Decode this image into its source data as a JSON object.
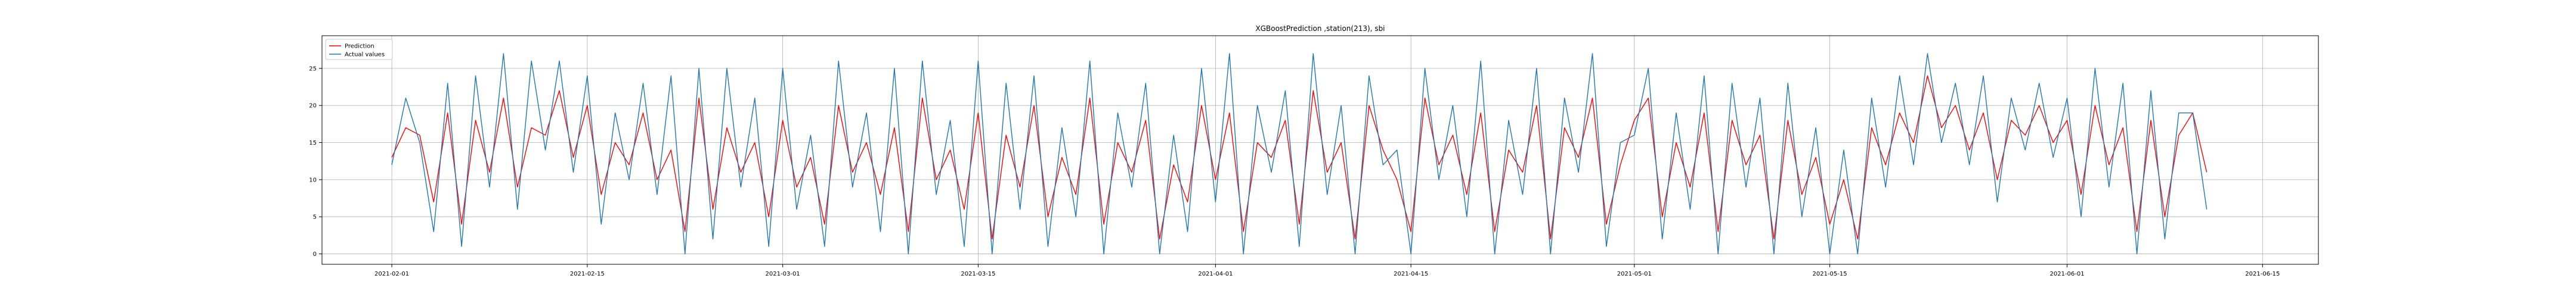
{
  "chart_data": {
    "type": "line",
    "title": "XGBoostPrediction ,station(213), sbi",
    "xlabel": "",
    "ylabel": "",
    "x_range": [
      "2021-01-27",
      "2021-06-19"
    ],
    "ylim": [
      -1.4,
      29.4
    ],
    "grid": true,
    "legend_position": "top-left",
    "x_ticks": [
      "2021-02-01",
      "2021-02-15",
      "2021-03-01",
      "2021-03-15",
      "2021-04-01",
      "2021-04-15",
      "2021-05-01",
      "2021-05-15",
      "2021-06-01",
      "2021-06-15"
    ],
    "y_ticks": [
      0,
      5,
      10,
      15,
      20,
      25
    ],
    "series": [
      {
        "name": "Prediction",
        "color": "#ff0000",
        "x": [
          "2021-02-01",
          "2021-02-02",
          "2021-02-03",
          "2021-02-04",
          "2021-02-05",
          "2021-02-06",
          "2021-02-07",
          "2021-02-08",
          "2021-02-09",
          "2021-02-10",
          "2021-02-11",
          "2021-02-12",
          "2021-02-13",
          "2021-02-14",
          "2021-02-15",
          "2021-02-16",
          "2021-02-17",
          "2021-02-18",
          "2021-02-19",
          "2021-02-20",
          "2021-02-21",
          "2021-02-22",
          "2021-02-23",
          "2021-02-24",
          "2021-02-25",
          "2021-02-26",
          "2021-02-27",
          "2021-02-28",
          "2021-03-01",
          "2021-03-02",
          "2021-03-03",
          "2021-03-04",
          "2021-03-05",
          "2021-03-06",
          "2021-03-07",
          "2021-03-08",
          "2021-03-09",
          "2021-03-10",
          "2021-03-11",
          "2021-03-12",
          "2021-03-13",
          "2021-03-14",
          "2021-03-15",
          "2021-03-16",
          "2021-03-17",
          "2021-03-18",
          "2021-03-19",
          "2021-03-20",
          "2021-03-21",
          "2021-03-22",
          "2021-03-23",
          "2021-03-24",
          "2021-03-25",
          "2021-03-26",
          "2021-03-27",
          "2021-03-28",
          "2021-03-29",
          "2021-03-30",
          "2021-03-31",
          "2021-04-01",
          "2021-04-02",
          "2021-04-03",
          "2021-04-04",
          "2021-04-05",
          "2021-04-06",
          "2021-04-07",
          "2021-04-08",
          "2021-04-09",
          "2021-04-10",
          "2021-04-11",
          "2021-04-12",
          "2021-04-13",
          "2021-04-14",
          "2021-04-15",
          "2021-04-16",
          "2021-04-17",
          "2021-04-18",
          "2021-04-19",
          "2021-04-20",
          "2021-04-21",
          "2021-04-22",
          "2021-04-23",
          "2021-04-24",
          "2021-04-25",
          "2021-04-26",
          "2021-04-27",
          "2021-04-28",
          "2021-04-29",
          "2021-04-30",
          "2021-05-01",
          "2021-05-02",
          "2021-05-03",
          "2021-05-04",
          "2021-05-05",
          "2021-05-06",
          "2021-05-07",
          "2021-05-08",
          "2021-05-09",
          "2021-05-10",
          "2021-05-11",
          "2021-05-12",
          "2021-05-13",
          "2021-05-14",
          "2021-05-15",
          "2021-05-16",
          "2021-05-17",
          "2021-05-18",
          "2021-05-19",
          "2021-05-20",
          "2021-05-21",
          "2021-05-22",
          "2021-05-23",
          "2021-05-24",
          "2021-05-25",
          "2021-05-26",
          "2021-05-27",
          "2021-05-28",
          "2021-05-29",
          "2021-05-30",
          "2021-05-31",
          "2021-06-01",
          "2021-06-02",
          "2021-06-03",
          "2021-06-04",
          "2021-06-05",
          "2021-06-06",
          "2021-06-07",
          "2021-06-08",
          "2021-06-09",
          "2021-06-10",
          "2021-06-11"
        ],
        "y": [
          13,
          17,
          16,
          7,
          19,
          4,
          18,
          11,
          21,
          9,
          17,
          16,
          22,
          13,
          20,
          8,
          15,
          12,
          19,
          10,
          14,
          3,
          21,
          6,
          17,
          11,
          15,
          5,
          18,
          9,
          13,
          4,
          20,
          11,
          15,
          8,
          17,
          3,
          21,
          10,
          14,
          6,
          19,
          2,
          16,
          9,
          20,
          5,
          13,
          8,
          21,
          4,
          15,
          11,
          18,
          2,
          12,
          7,
          20,
          10,
          19,
          3,
          15,
          13,
          18,
          4,
          22,
          11,
          15,
          2,
          20,
          14,
          10,
          3,
          21,
          12,
          16,
          8,
          19,
          3,
          14,
          11,
          20,
          2,
          17,
          13,
          21,
          4,
          12,
          18,
          21,
          5,
          15,
          9,
          19,
          3,
          18,
          12,
          16,
          2,
          18,
          8,
          13,
          4,
          10,
          2,
          17,
          12,
          19,
          15,
          24,
          17,
          20,
          14,
          19,
          10,
          18,
          16,
          20,
          15,
          18,
          8,
          20,
          12,
          17,
          3,
          18,
          5,
          16,
          19,
          11
        ],
        "note": ""
      },
      {
        "name": "Actual values",
        "color": "#1f77b4",
        "x": [
          "2021-02-01",
          "2021-02-02",
          "2021-02-03",
          "2021-02-04",
          "2021-02-05",
          "2021-02-06",
          "2021-02-07",
          "2021-02-08",
          "2021-02-09",
          "2021-02-10",
          "2021-02-11",
          "2021-02-12",
          "2021-02-13",
          "2021-02-14",
          "2021-02-15",
          "2021-02-16",
          "2021-02-17",
          "2021-02-18",
          "2021-02-19",
          "2021-02-20",
          "2021-02-21",
          "2021-02-22",
          "2021-02-23",
          "2021-02-24",
          "2021-02-25",
          "2021-02-26",
          "2021-02-27",
          "2021-02-28",
          "2021-03-01",
          "2021-03-02",
          "2021-03-03",
          "2021-03-04",
          "2021-03-05",
          "2021-03-06",
          "2021-03-07",
          "2021-03-08",
          "2021-03-09",
          "2021-03-10",
          "2021-03-11",
          "2021-03-12",
          "2021-03-13",
          "2021-03-14",
          "2021-03-15",
          "2021-03-16",
          "2021-03-17",
          "2021-03-18",
          "2021-03-19",
          "2021-03-20",
          "2021-03-21",
          "2021-03-22",
          "2021-03-23",
          "2021-03-24",
          "2021-03-25",
          "2021-03-26",
          "2021-03-27",
          "2021-03-28",
          "2021-03-29",
          "2021-03-30",
          "2021-03-31",
          "2021-04-01",
          "2021-04-02",
          "2021-04-03",
          "2021-04-04",
          "2021-04-05",
          "2021-04-06",
          "2021-04-07",
          "2021-04-08",
          "2021-04-09",
          "2021-04-10",
          "2021-04-11",
          "2021-04-12",
          "2021-04-13",
          "2021-04-14",
          "2021-04-15",
          "2021-04-16",
          "2021-04-17",
          "2021-04-18",
          "2021-04-19",
          "2021-04-20",
          "2021-04-21",
          "2021-04-22",
          "2021-04-23",
          "2021-04-24",
          "2021-04-25",
          "2021-04-26",
          "2021-04-27",
          "2021-04-28",
          "2021-04-29",
          "2021-04-30",
          "2021-05-01",
          "2021-05-02",
          "2021-05-03",
          "2021-05-04",
          "2021-05-05",
          "2021-05-06",
          "2021-05-07",
          "2021-05-08",
          "2021-05-09",
          "2021-05-10",
          "2021-05-11",
          "2021-05-12",
          "2021-05-13",
          "2021-05-14",
          "2021-05-15",
          "2021-05-16",
          "2021-05-17",
          "2021-05-18",
          "2021-05-19",
          "2021-05-20",
          "2021-05-21",
          "2021-05-22",
          "2021-05-23",
          "2021-05-24",
          "2021-05-25",
          "2021-05-26",
          "2021-05-27",
          "2021-05-28",
          "2021-05-29",
          "2021-05-30",
          "2021-05-31",
          "2021-06-01",
          "2021-06-02",
          "2021-06-03",
          "2021-06-04",
          "2021-06-05",
          "2021-06-06",
          "2021-06-07",
          "2021-06-08",
          "2021-06-09",
          "2021-06-10",
          "2021-06-11"
        ],
        "y": [
          12,
          21,
          15,
          3,
          23,
          1,
          24,
          9,
          27,
          6,
          26,
          14,
          26,
          11,
          24,
          4,
          19,
          10,
          23,
          8,
          24,
          0,
          25,
          2,
          25,
          9,
          21,
          1,
          25,
          6,
          16,
          1,
          26,
          9,
          19,
          3,
          25,
          0,
          26,
          8,
          18,
          1,
          26,
          0,
          23,
          6,
          24,
          1,
          17,
          5,
          26,
          0,
          19,
          9,
          23,
          0,
          16,
          3,
          25,
          7,
          27,
          0,
          20,
          11,
          22,
          1,
          27,
          8,
          20,
          0,
          24,
          12,
          14,
          0,
          25,
          10,
          20,
          5,
          26,
          0,
          18,
          8,
          25,
          0,
          21,
          11,
          27,
          1,
          15,
          16,
          25,
          2,
          19,
          6,
          24,
          0,
          23,
          9,
          21,
          0,
          23,
          5,
          17,
          0,
          14,
          0,
          21,
          9,
          24,
          12,
          27,
          15,
          23,
          12,
          24,
          7,
          21,
          14,
          23,
          13,
          21,
          5,
          25,
          9,
          23,
          0,
          22,
          2,
          19,
          19,
          6
        ],
        "note": ""
      }
    ]
  }
}
